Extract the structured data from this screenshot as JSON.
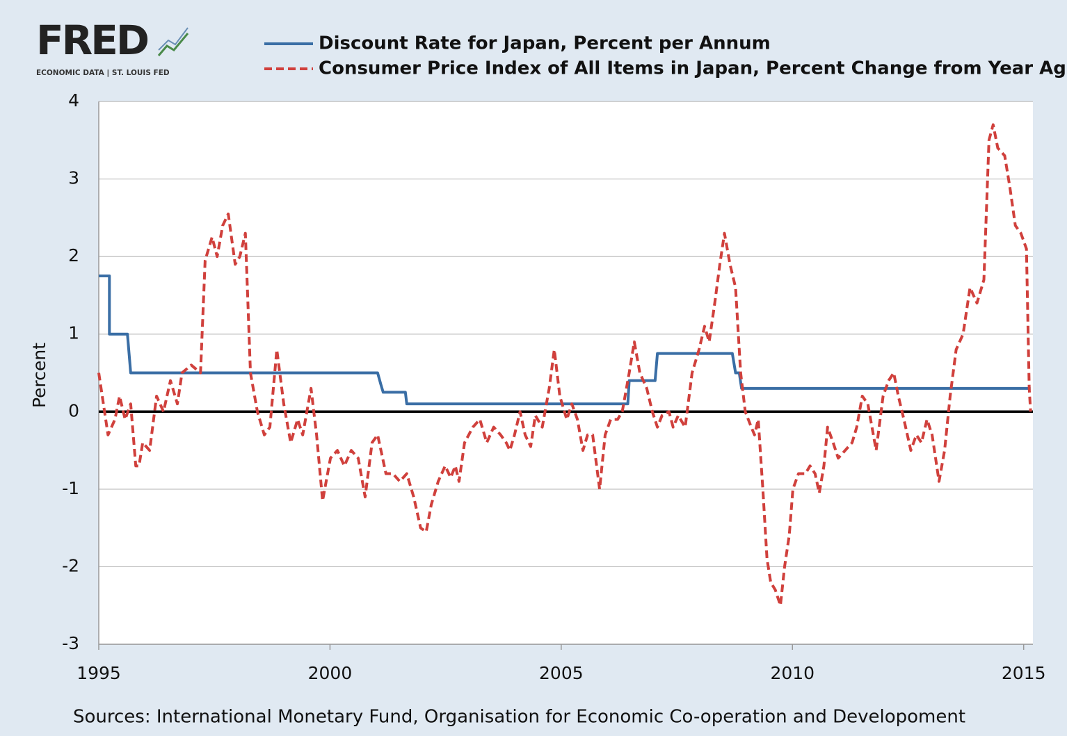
{
  "chart_data": {
    "type": "line",
    "logo": {
      "name": "FRED",
      "tagline": "ECONOMIC DATA | ST. LOUIS FED"
    },
    "ylabel": "Percent",
    "source": "Sources: International Monetary Fund, Organisation for Economic Co-operation and Developoment",
    "xlim": [
      1995,
      2015.2
    ],
    "xticks": [
      1995,
      2000,
      2005,
      2010,
      2015
    ],
    "ylim": [
      -3,
      4
    ],
    "yticks": [
      -3,
      -2,
      -1,
      0,
      1,
      2,
      3,
      4
    ],
    "grid": true,
    "series": [
      {
        "name": "Discount Rate for Japan, Percent per Annum",
        "color": "#3a6ea5",
        "dash": false,
        "x": [
          1995.0,
          1995.23,
          1995.23,
          1995.62,
          1995.69,
          2001.03,
          2001.1,
          2001.15,
          2001.63,
          2001.66,
          2006.44,
          2006.47,
          2007.03,
          2007.08,
          2008.7,
          2008.77,
          2008.85,
          2008.9,
          2015.15
        ],
        "values": [
          1.75,
          1.75,
          1.0,
          1.0,
          0.5,
          0.5,
          0.35,
          0.25,
          0.25,
          0.1,
          0.1,
          0.4,
          0.4,
          0.75,
          0.75,
          0.5,
          0.5,
          0.3,
          0.3
        ]
      },
      {
        "name": "Consumer Price Index of All Items in Japan, Percent Change from Year Ago",
        "color": "#d0403c",
        "dash": true,
        "x": [
          1995.0,
          1995.2,
          1995.35,
          1995.45,
          1995.57,
          1995.69,
          1995.8,
          1995.87,
          1995.95,
          1996.1,
          1996.25,
          1996.4,
          1996.55,
          1996.7,
          1996.8,
          1997.0,
          1997.2,
          1997.3,
          1997.45,
          1997.56,
          1997.68,
          1997.8,
          1997.95,
          1998.05,
          1998.17,
          1998.28,
          1998.43,
          1998.58,
          1998.7,
          1998.85,
          1999.0,
          1999.15,
          1999.3,
          1999.41,
          1999.59,
          1999.71,
          1999.84,
          2000.01,
          2000.16,
          2000.31,
          2000.46,
          2000.61,
          2000.76,
          2000.91,
          2001.03,
          2001.21,
          2001.36,
          2001.51,
          2001.66,
          2001.81,
          2001.96,
          2002.08,
          2002.19,
          2002.34,
          2002.49,
          2002.61,
          2002.71,
          2002.79,
          2002.91,
          2003.09,
          2003.24,
          2003.39,
          2003.54,
          2003.69,
          2003.81,
          2003.89,
          2003.99,
          2004.11,
          2004.22,
          2004.34,
          2004.44,
          2004.59,
          2004.74,
          2004.85,
          2004.97,
          2005.12,
          2005.23,
          2005.35,
          2005.47,
          2005.57,
          2005.68,
          2005.83,
          2005.95,
          2006.07,
          2006.22,
          2006.32,
          2006.47,
          2006.58,
          2006.7,
          2006.85,
          2006.97,
          2007.08,
          2007.18,
          2007.33,
          2007.42,
          2007.53,
          2007.68,
          2007.83,
          2007.98,
          2008.1,
          2008.2,
          2008.32,
          2008.43,
          2008.53,
          2008.65,
          2008.77,
          2008.88,
          2008.98,
          2009.11,
          2009.18,
          2009.26,
          2009.36,
          2009.45,
          2009.53,
          2009.63,
          2009.74,
          2009.83,
          2009.93,
          2010.01,
          2010.13,
          2010.28,
          2010.38,
          2010.49,
          2010.58,
          2010.68,
          2010.76,
          2010.88,
          2010.99,
          2011.14,
          2011.29,
          2011.39,
          2011.51,
          2011.63,
          2011.81,
          2011.96,
          2012.08,
          2012.19,
          2012.29,
          2012.41,
          2012.56,
          2012.68,
          2012.79,
          2012.91,
          2013.02,
          2013.17,
          2013.29,
          2013.41,
          2013.54,
          2013.69,
          2013.84,
          2013.99,
          2014.14,
          2014.25,
          2014.34,
          2014.44,
          2014.59,
          2014.7,
          2014.82,
          2014.94,
          2015.06,
          2015.12,
          2015.15
        ],
        "values": [
          0.5,
          -0.3,
          -0.1,
          0.2,
          -0.1,
          0.1,
          -0.7,
          -0.7,
          -0.4,
          -0.5,
          0.2,
          0.0,
          0.4,
          0.1,
          0.5,
          0.6,
          0.5,
          1.95,
          2.25,
          2.0,
          2.4,
          2.55,
          1.9,
          2.0,
          2.3,
          0.5,
          0.0,
          -0.3,
          -0.2,
          0.8,
          0.1,
          -0.4,
          -0.1,
          -0.3,
          0.3,
          -0.3,
          -1.15,
          -0.6,
          -0.5,
          -0.7,
          -0.5,
          -0.6,
          -1.1,
          -0.4,
          -0.3,
          -0.8,
          -0.8,
          -0.9,
          -0.8,
          -1.1,
          -1.5,
          -1.55,
          -1.2,
          -0.9,
          -0.7,
          -0.85,
          -0.7,
          -0.9,
          -0.4,
          -0.2,
          -0.1,
          -0.4,
          -0.2,
          -0.3,
          -0.4,
          -0.5,
          -0.3,
          0.0,
          -0.3,
          -0.45,
          -0.05,
          -0.2,
          0.3,
          0.8,
          0.2,
          -0.1,
          0.1,
          -0.1,
          -0.5,
          -0.3,
          -0.3,
          -1.0,
          -0.3,
          -0.1,
          -0.1,
          0.0,
          0.5,
          0.9,
          0.5,
          0.3,
          0.0,
          -0.2,
          -0.05,
          0.0,
          -0.2,
          -0.05,
          -0.2,
          0.5,
          0.8,
          1.1,
          0.9,
          1.4,
          1.9,
          2.3,
          1.9,
          1.6,
          0.5,
          0.0,
          -0.2,
          -0.3,
          -0.1,
          -1.0,
          -1.9,
          -2.2,
          -2.3,
          -2.5,
          -2.0,
          -1.6,
          -1.0,
          -0.8,
          -0.8,
          -0.7,
          -0.8,
          -1.05,
          -0.7,
          -0.2,
          -0.4,
          -0.6,
          -0.5,
          -0.4,
          -0.2,
          0.2,
          0.1,
          -0.5,
          0.2,
          0.4,
          0.5,
          0.2,
          -0.1,
          -0.5,
          -0.3,
          -0.4,
          -0.1,
          -0.3,
          -0.9,
          -0.5,
          0.2,
          0.8,
          1.0,
          1.6,
          1.4,
          1.7,
          3.5,
          3.7,
          3.4,
          3.3,
          2.9,
          2.4,
          2.3,
          2.1,
          0.3,
          0.0
        ]
      }
    ]
  }
}
